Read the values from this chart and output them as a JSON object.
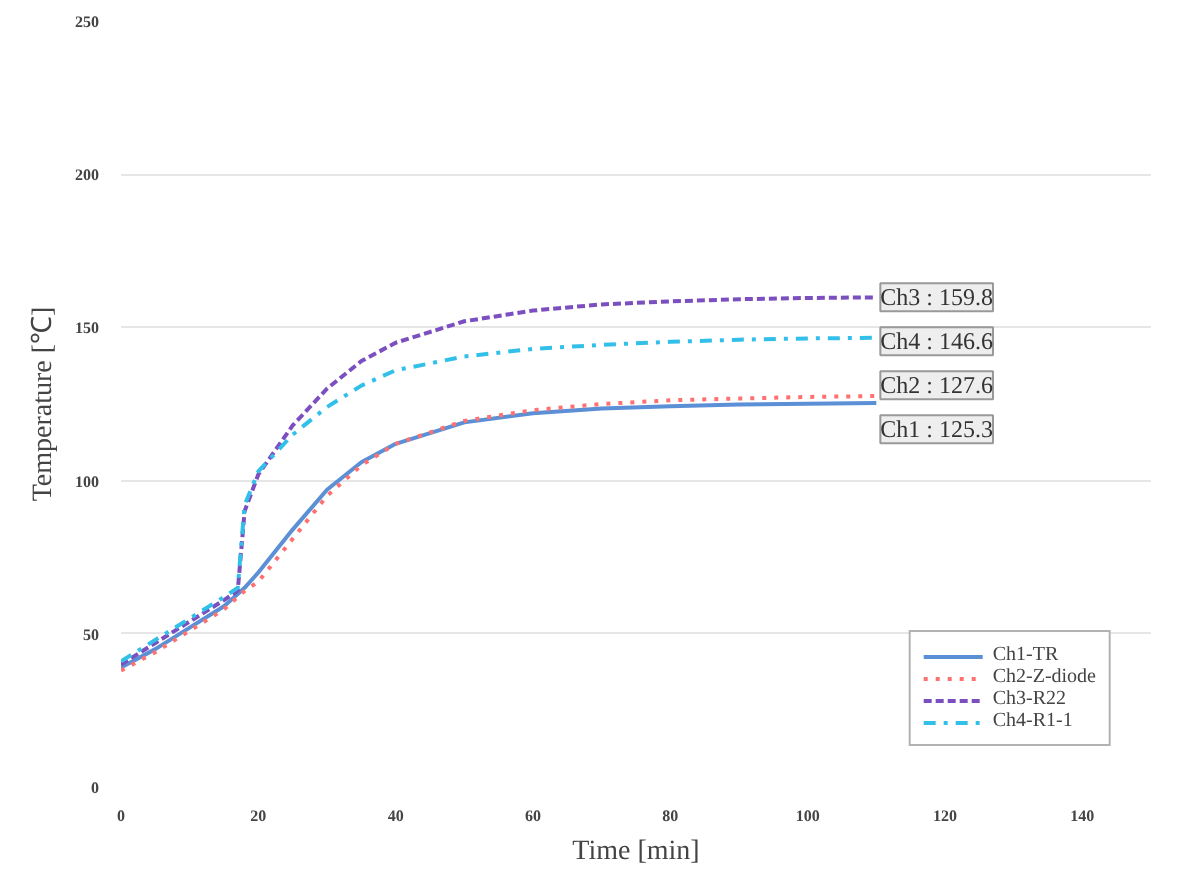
{
  "chart_data": {
    "type": "line",
    "xlabel": "Time [min]",
    "ylabel": "Temperature [℃]",
    "x": [
      0,
      5,
      10,
      15,
      17,
      18,
      20,
      25,
      30,
      35,
      40,
      50,
      60,
      70,
      80,
      90,
      100,
      110
    ],
    "series": [
      {
        "name": "Ch1-TR",
        "color": "#5b8fd6",
        "line_style": "solid",
        "values": [
          39,
          45,
          52,
          59,
          63,
          65,
          70,
          84,
          97,
          106,
          112,
          119,
          122,
          123.5,
          124.3,
          124.8,
          125.1,
          125.3
        ]
      },
      {
        "name": "Ch2-Z-diode",
        "color": "#ff7070",
        "line_style": "dotted",
        "values": [
          38,
          44,
          51,
          58,
          62,
          64,
          67,
          81,
          95,
          105,
          112,
          119.5,
          123,
          125,
          126.2,
          126.8,
          127.3,
          127.6
        ]
      },
      {
        "name": "Ch3-R22",
        "color": "#7b4fc0",
        "line_style": "dashed",
        "values": [
          40,
          47,
          54,
          61,
          64,
          90,
          102,
          118,
          130,
          139,
          145,
          152,
          155.5,
          157.5,
          158.5,
          159.2,
          159.6,
          159.8
        ]
      },
      {
        "name": "Ch4-R1-1",
        "color": "#33c0e8",
        "line_style": "dashdot",
        "values": [
          41,
          48,
          55,
          62,
          65,
          92,
          103,
          115,
          124,
          131,
          136,
          140.5,
          143,
          144.3,
          145.3,
          146,
          146.4,
          146.6
        ]
      }
    ],
    "annotations": [
      "Ch3 : 159.8",
      "Ch4 : 146.6",
      "Ch2 : 127.6",
      "Ch1 : 125.3"
    ],
    "xlim": [
      0,
      150
    ],
    "xticks": [
      0,
      20,
      40,
      60,
      80,
      100,
      120,
      140
    ],
    "ylim": [
      0,
      250
    ],
    "yticks": [
      0,
      50,
      100,
      150,
      200,
      250
    ],
    "grid": "y",
    "legend": "bottom right",
    "marker": "none"
  }
}
